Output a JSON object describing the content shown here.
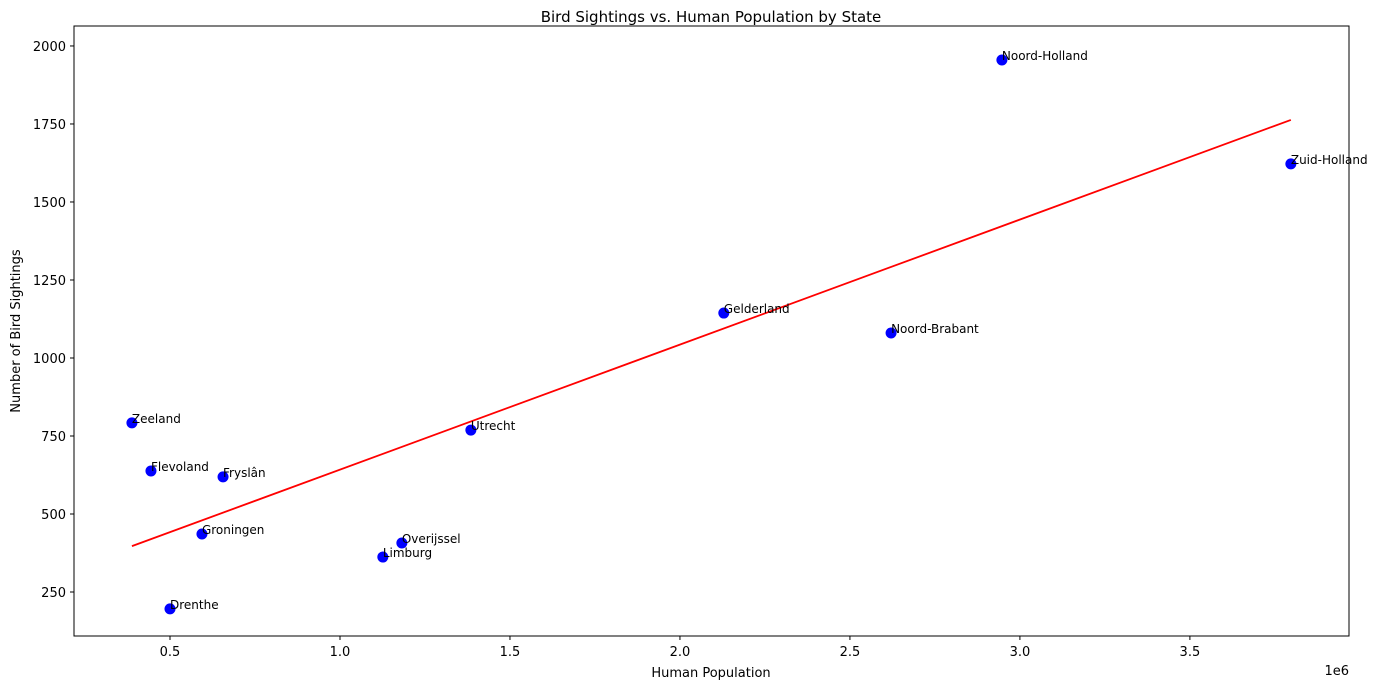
{
  "chart_data": {
    "type": "scatter",
    "title": "Bird Sightings vs. Human Population by State",
    "x_label": "Human Population",
    "y_label": "Number of Bird Sightings",
    "x_offset_label": "1e6",
    "labels": [
      "Noord-Holland",
      "Zuid-Holland",
      "Gelderland",
      "Noord-Brabant",
      "Zeeland",
      "Utrecht",
      "Flevoland",
      "Fryslân",
      "Groningen",
      "Overijssel",
      "Limburg",
      "Drenthe"
    ],
    "x": [
      2947000,
      3797000,
      2129000,
      2621000,
      388000,
      1385000,
      444000,
      656000,
      594000,
      1182000,
      1126000,
      500000
    ],
    "values": [
      1955,
      1622,
      1144,
      1080,
      792,
      769,
      638,
      619,
      436,
      407,
      362,
      196
    ],
    "color": "#0000ff",
    "trendline": {
      "color": "#ff0000",
      "x": [
        388000,
        3797000
      ],
      "values": [
        397,
        1763
      ]
    },
    "xlim": [
      217600,
      3968000
    ],
    "ylim": [
      109,
      2064
    ],
    "xticks": [
      {
        "value": 500000,
        "label": "0.5"
      },
      {
        "value": 1000000,
        "label": "1.0"
      },
      {
        "value": 1500000,
        "label": "1.5"
      },
      {
        "value": 2000000,
        "label": "2.0"
      },
      {
        "value": 2500000,
        "label": "2.5"
      },
      {
        "value": 3000000,
        "label": "3.0"
      },
      {
        "value": 3500000,
        "label": "3.5"
      }
    ],
    "yticks": [
      250,
      500,
      750,
      1000,
      1250,
      1500,
      1750,
      2000
    ]
  }
}
